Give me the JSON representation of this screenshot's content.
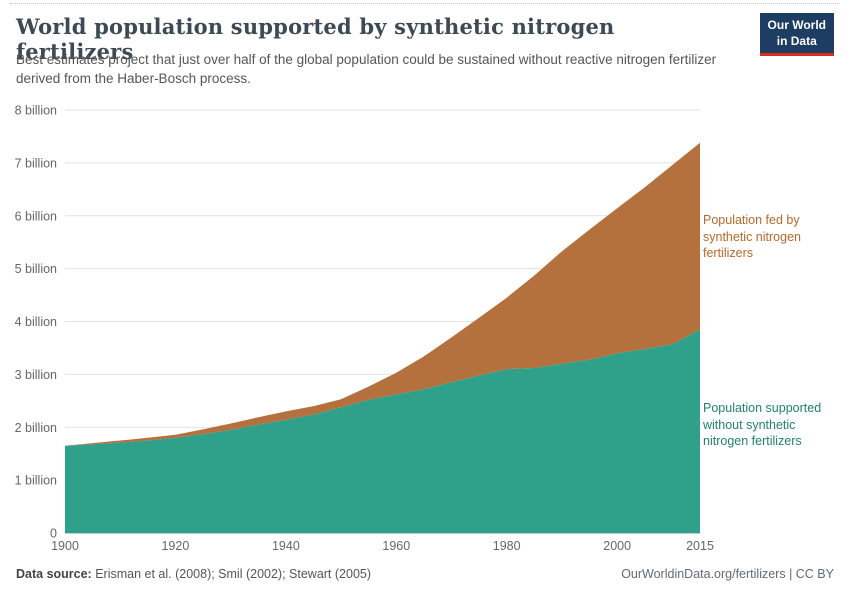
{
  "header": {
    "title": "World population supported by synthetic nitrogen fertilizers",
    "subtitle": "Best estimates project that just over half of the global population could be sustained without reactive nitrogen fertilizer derived from the Haber-Bosch process.",
    "logo_line1": "Our World",
    "logo_line2": "in Data"
  },
  "footer": {
    "source_label": "Data source:",
    "source_text": " Erisman et al. (2008); Smil (2002); Stewart (2005)",
    "license_text": "OurWorldinData.org/fertilizers | CC BY"
  },
  "colors": {
    "without_area": "#2fa08a",
    "fed_area": "#b4713d",
    "without_label": "#20836e",
    "fed_label": "#b5692a",
    "logo_bg": "#1d3d63",
    "logo_accent": "#dc2a1d",
    "gridline": "#e2e2e2",
    "axis_line": "#9a9a9a",
    "tick_text": "#666666"
  },
  "chart_data": {
    "type": "area",
    "stacked": true,
    "title": "World population supported by synthetic nitrogen fertilizers",
    "xlabel": "",
    "ylabel": "",
    "grid": true,
    "legend_position": "right-annotations",
    "xlim": [
      1900,
      2015
    ],
    "ylim": [
      0,
      8
    ],
    "x": [
      1900,
      1905,
      1910,
      1915,
      1920,
      1925,
      1930,
      1935,
      1940,
      1945,
      1950,
      1955,
      1960,
      1965,
      1970,
      1975,
      1980,
      1985,
      1990,
      1995,
      2000,
      2005,
      2010,
      2015
    ],
    "series": [
      {
        "id": "without-fertilizers",
        "name": "Population supported without synthetic nitrogen fertilizers",
        "color": "#2fa08a",
        "values": [
          1.65,
          1.68,
          1.71,
          1.75,
          1.8,
          1.87,
          1.95,
          2.05,
          2.14,
          2.24,
          2.38,
          2.52,
          2.62,
          2.72,
          2.85,
          2.98,
          3.1,
          3.12,
          3.2,
          3.28,
          3.4,
          3.48,
          3.57,
          3.85
        ]
      },
      {
        "id": "fed-by-fertilizers",
        "name": "Population fed by synthetic nitrogen fertilizers",
        "color": "#b4713d",
        "values": [
          0.0,
          0.02,
          0.04,
          0.05,
          0.06,
          0.09,
          0.12,
          0.14,
          0.16,
          0.16,
          0.15,
          0.25,
          0.41,
          0.62,
          0.85,
          1.09,
          1.35,
          1.75,
          2.13,
          2.46,
          2.74,
          3.06,
          3.39,
          3.53
        ]
      }
    ],
    "total_population": [
      1.65,
      1.7,
      1.75,
      1.8,
      1.86,
      1.96,
      2.07,
      2.19,
      2.3,
      2.4,
      2.53,
      2.77,
      3.03,
      3.34,
      3.7,
      4.07,
      4.45,
      4.87,
      5.33,
      5.74,
      6.14,
      6.54,
      6.96,
      7.38
    ],
    "yticks": [
      {
        "value": 0,
        "label": "0"
      },
      {
        "value": 1,
        "label": "1 billion"
      },
      {
        "value": 2,
        "label": "2 billion"
      },
      {
        "value": 3,
        "label": "3 billion"
      },
      {
        "value": 4,
        "label": "4 billion"
      },
      {
        "value": 5,
        "label": "5 billion"
      },
      {
        "value": 6,
        "label": "6 billion"
      },
      {
        "value": 7,
        "label": "7 billion"
      },
      {
        "value": 8,
        "label": "8 billion"
      }
    ],
    "xticks": [
      {
        "value": 1900,
        "label": "1900"
      },
      {
        "value": 1920,
        "label": "1920"
      },
      {
        "value": 1940,
        "label": "1940"
      },
      {
        "value": 1960,
        "label": "1960"
      },
      {
        "value": 1980,
        "label": "1980"
      },
      {
        "value": 2000,
        "label": "2000"
      },
      {
        "value": 2015,
        "label": "2015"
      }
    ]
  }
}
